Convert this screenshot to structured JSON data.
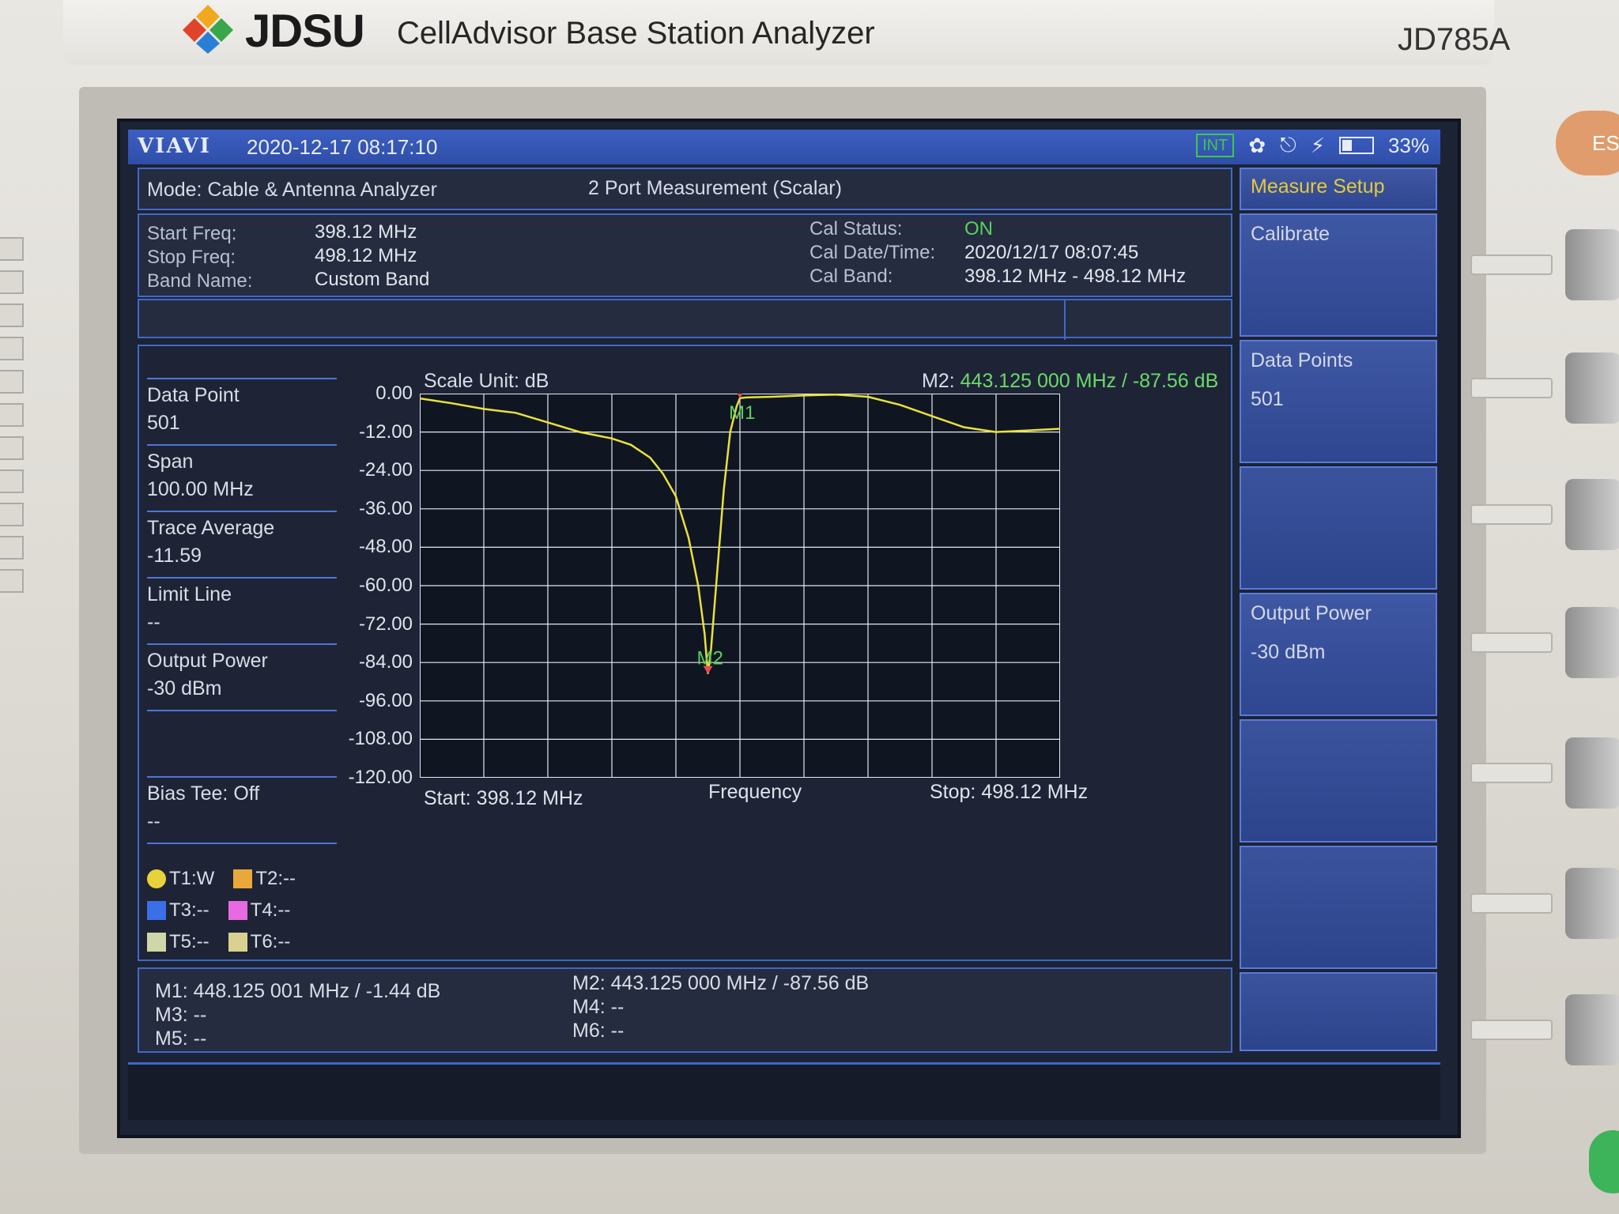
{
  "device": {
    "brand": "JDSU",
    "product": "CellAdvisor Base Station Analyzer",
    "model": "JD785A",
    "esc_label": "ES"
  },
  "statusbar": {
    "brand": "VIAVI",
    "datetime": "2020-12-17  08:17:10",
    "int_label": "INT",
    "battery": "33%"
  },
  "mode": {
    "label": "Mode: Cable & Antenna Analyzer",
    "measurement": "2 Port Measurement (Scalar)"
  },
  "info": {
    "start_freq_label": "Start Freq:",
    "start_freq": "398.12 MHz",
    "stop_freq_label": "Stop Freq:",
    "stop_freq": "498.12 MHz",
    "band_name_label": "Band Name:",
    "band_name": "Custom Band",
    "cal_status_label": "Cal Status:",
    "cal_status": "ON",
    "cal_datetime_label": "Cal Date/Time:",
    "cal_datetime": "2020/12/17 08:07:45",
    "cal_band_label": "Cal Band:",
    "cal_band": "398.12 MHz - 498.12 MHz"
  },
  "side": {
    "data_point_label": "Data Point",
    "data_point": "501",
    "span_label": "Span",
    "span": "100.00 MHz",
    "trace_avg_label": "Trace Average",
    "trace_avg": "-11.59",
    "limit_line_label": "Limit Line",
    "limit_line": "--",
    "output_power_label": "Output Power",
    "output_power": "-30 dBm",
    "bias_tee_label": "Bias Tee: Off",
    "bias_tee": "--"
  },
  "legend": [
    {
      "label": "T1:W",
      "color": "#e8d23a",
      "shape": "circle"
    },
    {
      "label": "T2:--",
      "color": "#e8a93a",
      "shape": "square"
    },
    {
      "label": "T3:--",
      "color": "#3a6fe8",
      "shape": "square"
    },
    {
      "label": "T4:--",
      "color": "#e86ae0",
      "shape": "square"
    },
    {
      "label": "T5:--",
      "color": "#cfd7a8",
      "shape": "square"
    },
    {
      "label": "T6:--",
      "color": "#d9d190",
      "shape": "square"
    }
  ],
  "chart_data": {
    "type": "line",
    "title": "",
    "scale_unit": "Scale Unit: dB",
    "xlabel": "Frequency",
    "start_label": "Start: 398.12 MHz",
    "stop_label": "Stop: 498.12 MHz",
    "xlim": [
      398.12,
      498.12
    ],
    "ylim": [
      -120,
      0
    ],
    "y_ticks": [
      "0.00",
      "-12.00",
      "-24.00",
      "-36.00",
      "-48.00",
      "-60.00",
      "-72.00",
      "-84.00",
      "-96.00",
      "-108.00",
      "-120.00"
    ],
    "grid": true,
    "series": [
      {
        "name": "T1",
        "color": "#e8e23a",
        "x": [
          398.12,
          403.1,
          408.1,
          413.1,
          418.1,
          423.1,
          428.1,
          431.1,
          434.1,
          436.1,
          438.1,
          440.1,
          441.6,
          442.6,
          443.125,
          443.6,
          444.6,
          445.6,
          446.6,
          447.6,
          448.125,
          449.1,
          453.1,
          458.1,
          463.1,
          468.1,
          473.1,
          478.1,
          483.1,
          488.1,
          493.1,
          498.12
        ],
        "y": [
          -1.5,
          -3.0,
          -4.8,
          -6.0,
          -9.0,
          -12.0,
          -14.0,
          -16.0,
          -20.0,
          -25.0,
          -32.0,
          -45.0,
          -60.0,
          -75.0,
          -87.56,
          -80.0,
          -55.0,
          -30.0,
          -12.0,
          -4.0,
          -1.44,
          -1.2,
          -1.0,
          -0.6,
          -0.3,
          -1.0,
          -3.5,
          -7.0,
          -10.5,
          -12.0,
          -11.5,
          -11.0
        ]
      }
    ],
    "markers": [
      {
        "name": "M1",
        "x": 448.125001,
        "y": -1.44
      },
      {
        "name": "M2",
        "x": 443.125,
        "y": -87.56
      }
    ],
    "active_marker_label": "M2:",
    "active_marker_value": "443.125 000 MHz / -87.56  dB"
  },
  "markers_table": {
    "m1": "M1: 448.125 001 MHz / -1.44  dB",
    "m2": "M2: 443.125 000 MHz / -87.56  dB",
    "m3": "M3: --",
    "m4": "M4: --",
    "m5": "M5: --",
    "m6": "M6: --"
  },
  "softmenu": {
    "title": "Measure Setup",
    "calibrate": "Calibrate",
    "data_points_label": "Data Points",
    "data_points_value": "501",
    "output_power_label": "Output Power",
    "output_power_value": "-30 dBm"
  }
}
